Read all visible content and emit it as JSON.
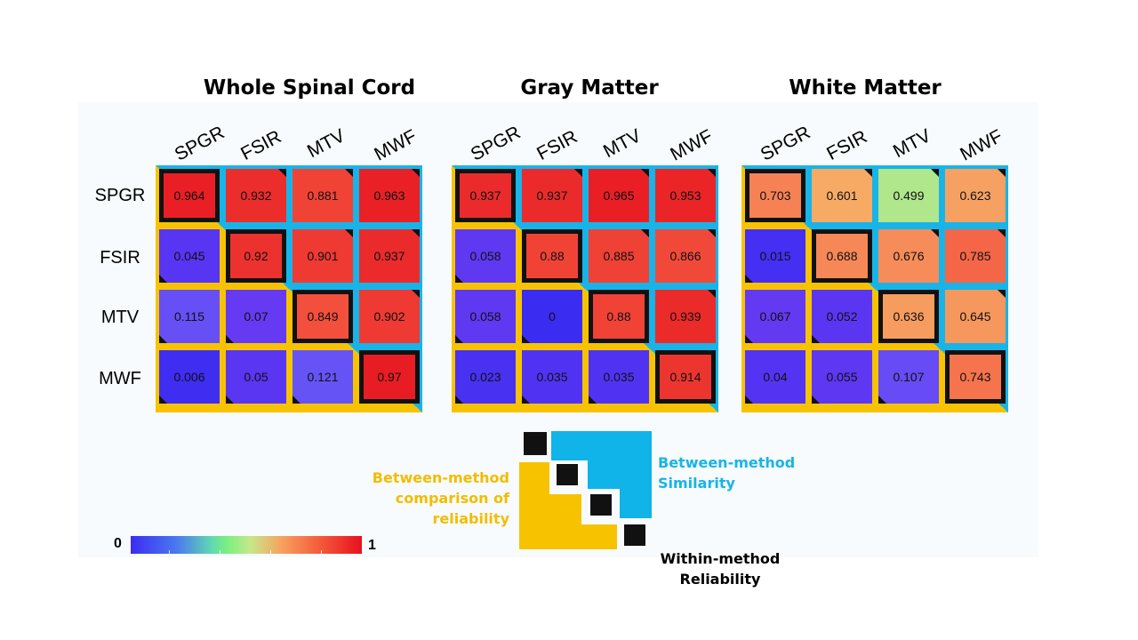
{
  "colors": {
    "upper_background": "#18b4e8",
    "lower_background": "#f7c300",
    "diagonal_border": "#111111",
    "colormap": "rainbow-turbo"
  },
  "chart_data": [
    {
      "type": "heatmap",
      "title": "Whole Spinal Cord",
      "columns": [
        "SPGR",
        "FSIR",
        "MTV",
        "MWF"
      ],
      "rows": [
        "SPGR",
        "FSIR",
        "MTV",
        "MWF"
      ],
      "values": [
        [
          "0.964",
          "0.932",
          "0.881",
          "0.963"
        ],
        [
          "0.045",
          "0.92",
          "0.901",
          "0.937"
        ],
        [
          "0.115",
          "0.07",
          "0.849",
          "0.902"
        ],
        [
          "0.006",
          "0.05",
          "0.121",
          "0.97"
        ]
      ],
      "vmin": 0,
      "vmax": 1
    },
    {
      "type": "heatmap",
      "title": "Gray Matter",
      "columns": [
        "SPGR",
        "FSIR",
        "MTV",
        "MWF"
      ],
      "values": [
        [
          "0.937",
          "0.937",
          "0.965",
          "0.953"
        ],
        [
          "0.058",
          "0.88",
          "0.885",
          "0.866"
        ],
        [
          "0.058",
          "0",
          "0.88",
          "0.939"
        ],
        [
          "0.023",
          "0.035",
          "0.035",
          "0.914"
        ]
      ],
      "vmin": 0,
      "vmax": 1
    },
    {
      "type": "heatmap",
      "title": "White Matter",
      "columns": [
        "SPGR",
        "FSIR",
        "MTV",
        "MWF"
      ],
      "values": [
        [
          "0.703",
          "0.601",
          "0.499",
          "0.623"
        ],
        [
          "0.015",
          "0.688",
          "0.676",
          "0.785"
        ],
        [
          "0.067",
          "0.052",
          "0.636",
          "0.645"
        ],
        [
          "0.04",
          "0.055",
          "0.107",
          "0.743"
        ]
      ],
      "vmin": 0,
      "vmax": 1
    }
  ],
  "colorbar": {
    "min_label": "0",
    "max_label": "1"
  },
  "legend": {
    "between_comparison": [
      "Between-method",
      "comparison of",
      "reliability"
    ],
    "between_similarity": [
      "Between-method",
      "Similarity"
    ],
    "within_reliability": [
      "Within-method",
      "Reliability"
    ]
  }
}
